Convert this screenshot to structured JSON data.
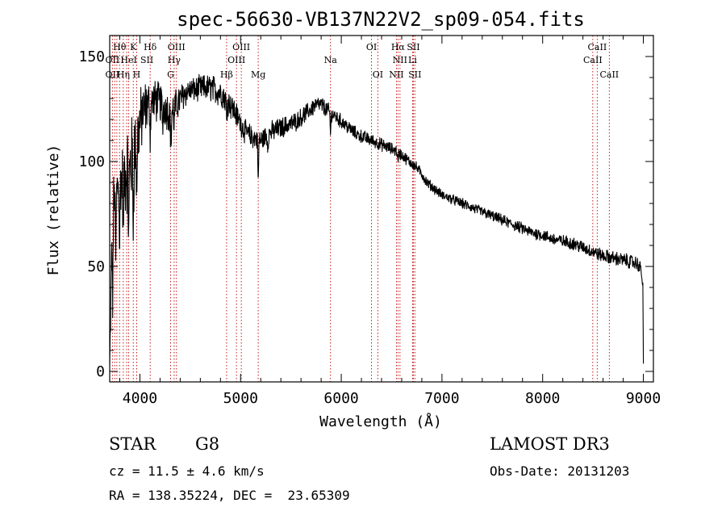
{
  "chart_data": {
    "type": "line",
    "title": "spec-56630-VB137N22V2_sp09-054.fits",
    "xlabel": "Wavelength (Å)",
    "ylabel": "Flux (relative)",
    "xlim": [
      3700,
      9100
    ],
    "ylim": [
      -5,
      160
    ],
    "x_ticks": [
      4000,
      5000,
      6000,
      7000,
      8000,
      9000
    ],
    "y_ticks": [
      0,
      50,
      100,
      150
    ],
    "grid": false,
    "legend": "none",
    "series": [
      {
        "name": "flux",
        "anchors": [
          [
            3700,
            2
          ],
          [
            3710,
            25
          ],
          [
            3720,
            60
          ],
          [
            3735,
            80
          ],
          [
            3750,
            86
          ],
          [
            3775,
            88
          ],
          [
            3800,
            90
          ],
          [
            3830,
            92
          ],
          [
            3860,
            94
          ],
          [
            3890,
            97
          ],
          [
            3920,
            101
          ],
          [
            3950,
            106
          ],
          [
            3980,
            113
          ],
          [
            4000,
            118
          ],
          [
            4030,
            123
          ],
          [
            4060,
            126
          ],
          [
            4100,
            128
          ],
          [
            4150,
            129
          ],
          [
            4200,
            128
          ],
          [
            4250,
            126
          ],
          [
            4300,
            123
          ],
          [
            4340,
            125
          ],
          [
            4380,
            128
          ],
          [
            4420,
            131
          ],
          [
            4460,
            133
          ],
          [
            4500,
            134
          ],
          [
            4550,
            134
          ],
          [
            4600,
            135
          ],
          [
            4650,
            135
          ],
          [
            4700,
            135
          ],
          [
            4750,
            134
          ],
          [
            4800,
            133
          ],
          [
            4850,
            130
          ],
          [
            4900,
            127
          ],
          [
            4950,
            123
          ],
          [
            5000,
            118
          ],
          [
            5050,
            114
          ],
          [
            5100,
            112
          ],
          [
            5150,
            111
          ],
          [
            5200,
            110
          ],
          [
            5250,
            112
          ],
          [
            5300,
            114
          ],
          [
            5350,
            115
          ],
          [
            5400,
            116
          ],
          [
            5450,
            117
          ],
          [
            5500,
            118
          ],
          [
            5550,
            119
          ],
          [
            5600,
            121
          ],
          [
            5650,
            123
          ],
          [
            5700,
            125
          ],
          [
            5750,
            127
          ],
          [
            5800,
            127
          ],
          [
            5850,
            125
          ],
          [
            5900,
            123
          ],
          [
            5950,
            121
          ],
          [
            6000,
            119
          ],
          [
            6050,
            117
          ],
          [
            6100,
            115
          ],
          [
            6150,
            113
          ],
          [
            6200,
            112
          ],
          [
            6250,
            111
          ],
          [
            6300,
            110
          ],
          [
            6350,
            109
          ],
          [
            6400,
            108
          ],
          [
            6450,
            107
          ],
          [
            6500,
            106
          ],
          [
            6550,
            105
          ],
          [
            6600,
            103
          ],
          [
            6650,
            101
          ],
          [
            6700,
            99
          ],
          [
            6750,
            97
          ],
          [
            6800,
            94
          ],
          [
            6850,
            90
          ],
          [
            6900,
            88
          ],
          [
            6950,
            86
          ],
          [
            7000,
            84
          ],
          [
            7100,
            82
          ],
          [
            7200,
            80
          ],
          [
            7300,
            78
          ],
          [
            7400,
            76
          ],
          [
            7500,
            74
          ],
          [
            7600,
            72
          ],
          [
            7700,
            70
          ],
          [
            7800,
            68
          ],
          [
            7900,
            66
          ],
          [
            8000,
            65
          ],
          [
            8100,
            63
          ],
          [
            8200,
            62
          ],
          [
            8300,
            61
          ],
          [
            8400,
            59
          ],
          [
            8500,
            57
          ],
          [
            8600,
            55
          ],
          [
            8700,
            54
          ],
          [
            8800,
            53
          ],
          [
            8900,
            52
          ],
          [
            8950,
            51
          ],
          [
            8980,
            48
          ],
          [
            8995,
            40
          ],
          [
            9000,
            5
          ],
          [
            9010,
            0
          ]
        ],
        "noise_amplitude": [
          [
            3700,
            8
          ],
          [
            3900,
            20
          ],
          [
            4100,
            9
          ],
          [
            4300,
            8
          ],
          [
            4500,
            5
          ],
          [
            4800,
            6
          ],
          [
            5000,
            5
          ],
          [
            5500,
            4
          ],
          [
            6000,
            3
          ],
          [
            7000,
            2
          ],
          [
            8000,
            2.5
          ],
          [
            9000,
            3
          ]
        ],
        "dips": [
          [
            3730,
            40
          ],
          [
            3760,
            35
          ],
          [
            3798,
            30
          ],
          [
            3835,
            28
          ],
          [
            3889,
            35
          ],
          [
            3934,
            30
          ],
          [
            3968,
            25
          ],
          [
            4102,
            15
          ],
          [
            4226,
            10
          ],
          [
            4308,
            18
          ],
          [
            4340,
            8
          ],
          [
            4861,
            8
          ],
          [
            5175,
            22
          ],
          [
            5270,
            6
          ],
          [
            5893,
            10
          ],
          [
            6563,
            6
          ]
        ]
      }
    ],
    "reference_lines": [
      3727,
      3750,
      3771,
      3798,
      3835,
      3869,
      3889,
      3934,
      3968,
      4102,
      4305,
      4340,
      4363,
      4861,
      4959,
      5007,
      5175,
      5893,
      6300,
      6363,
      6548,
      6563,
      6583,
      6708,
      6716,
      6731,
      8498,
      8542,
      8662
    ],
    "line_labels": [
      {
        "text": "Hθ",
        "wavelength": 3798,
        "row": 1
      },
      {
        "text": "K",
        "wavelength": 3934,
        "row": 1
      },
      {
        "text": "Hδ",
        "wavelength": 4102,
        "row": 1
      },
      {
        "text": "OIII",
        "wavelength": 4363,
        "row": 1
      },
      {
        "text": "OIII",
        "wavelength": 5007,
        "row": 1
      },
      {
        "text": "OI",
        "wavelength": 6300,
        "row": 1
      },
      {
        "text": "Hα",
        "wavelength": 6563,
        "row": 1
      },
      {
        "text": "SII",
        "wavelength": 6716,
        "row": 1
      },
      {
        "text": "CaII",
        "wavelength": 8542,
        "row": 1
      },
      {
        "text": "OII",
        "wavelength": 3727,
        "row": 2
      },
      {
        "text": "HeI",
        "wavelength": 3889,
        "row": 2
      },
      {
        "text": "SII",
        "wavelength": 4069,
        "row": 2
      },
      {
        "text": "Hγ",
        "wavelength": 4340,
        "row": 2
      },
      {
        "text": "OIII",
        "wavelength": 4959,
        "row": 2
      },
      {
        "text": "Na",
        "wavelength": 5893,
        "row": 2
      },
      {
        "text": "NII",
        "wavelength": 6583,
        "row": 2
      },
      {
        "text": "Li",
        "wavelength": 6708,
        "row": 2
      },
      {
        "text": "CaII",
        "wavelength": 8498,
        "row": 2
      },
      {
        "text": "OII",
        "wavelength": 3727,
        "row": 3
      },
      {
        "text": "Hη",
        "wavelength": 3835,
        "row": 3
      },
      {
        "text": "H",
        "wavelength": 3968,
        "row": 3
      },
      {
        "text": "G",
        "wavelength": 4305,
        "row": 3
      },
      {
        "text": "Hβ",
        "wavelength": 4861,
        "row": 3
      },
      {
        "text": "Mg",
        "wavelength": 5175,
        "row": 3
      },
      {
        "text": "OI",
        "wavelength": 6363,
        "row": 3
      },
      {
        "text": "NII",
        "wavelength": 6548,
        "row": 3
      },
      {
        "text": "SII",
        "wavelength": 6731,
        "row": 3
      },
      {
        "text": "CaII",
        "wavelength": 8662,
        "row": 3
      }
    ]
  },
  "info": {
    "object_class": "STAR",
    "subclass": "G8",
    "survey": "LAMOST DR3",
    "redshift": "cz = 11.5 ± 4.6 km/s",
    "obs_date": "Obs-Date: 20131203",
    "coords": "RA = 138.35224, DEC =  23.65309"
  },
  "colors": {
    "line": "#000000",
    "reference": "#c00000",
    "background": "#ffffff"
  }
}
